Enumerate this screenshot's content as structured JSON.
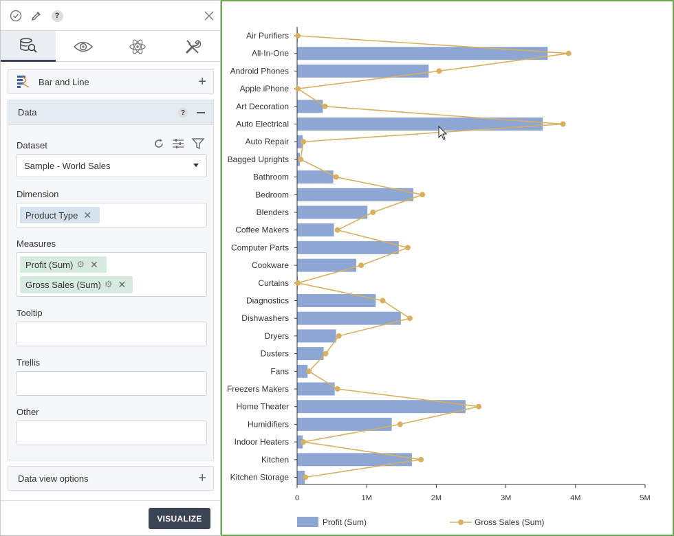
{
  "panel": {
    "tabs": [
      {
        "icon": "search-data-icon"
      },
      {
        "icon": "eye-icon"
      },
      {
        "icon": "atom-icon"
      },
      {
        "icon": "tools-icon"
      }
    ],
    "chart_type_label": "Bar and Line",
    "data_section_label": "Data",
    "help_mark": "?",
    "dataset_label": "Dataset",
    "dataset_value": "Sample - World Sales",
    "dimension_label": "Dimension",
    "dimension_chip": "Product Type",
    "measures_label": "Measures",
    "measure_chips": [
      "Profit (Sum)",
      "Gross Sales (Sum)"
    ],
    "tooltip_label": "Tooltip",
    "trellis_label": "Trellis",
    "other_label": "Other",
    "data_view_options_label": "Data view options",
    "visualize_label": "VISUALIZE"
  },
  "colors": {
    "bar": "#8ea6d3",
    "line": "#d9b05f",
    "frame": "#6aa84f",
    "button": "#3b4453"
  },
  "chart_data": {
    "type": "bar",
    "orientation": "horizontal",
    "categories": [
      "Air Purifiers",
      "All-In-One",
      "Android Phones",
      "Apple iPhone",
      "Art Decoration",
      "Auto Electrical",
      "Auto Repair",
      "Bagged Uprights",
      "Bathroom",
      "Bedroom",
      "Blenders",
      "Coffee Makers",
      "Computer Parts",
      "Cookware",
      "Curtains",
      "Diagnostics",
      "Dishwashers",
      "Dryers",
      "Dusters",
      "Fans",
      "Freezers Makers",
      "Home Theater",
      "Humidifiers",
      "Indoor Heaters",
      "Kitchen",
      "Kitchen Storage"
    ],
    "series": [
      {
        "name": "Profit (Sum)",
        "type": "bar",
        "values": [
          10000,
          3600000,
          1890000,
          5000,
          370000,
          3530000,
          80000,
          40000,
          520000,
          1670000,
          1010000,
          530000,
          1460000,
          850000,
          10000,
          1130000,
          1490000,
          560000,
          380000,
          150000,
          540000,
          2420000,
          1360000,
          80000,
          1650000,
          110000
        ]
      },
      {
        "name": "Gross Sales (Sum)",
        "type": "line",
        "values": [
          10000,
          3900000,
          2040000,
          10000,
          400000,
          3820000,
          90000,
          50000,
          560000,
          1800000,
          1090000,
          580000,
          1590000,
          920000,
          10000,
          1230000,
          1620000,
          600000,
          410000,
          170000,
          580000,
          2610000,
          1480000,
          90000,
          1780000,
          120000
        ]
      }
    ],
    "x_ticks": [
      "0",
      "1M",
      "2M",
      "3M",
      "4M",
      "5M"
    ],
    "xlim": [
      0,
      5000000
    ],
    "legend": [
      "Profit (Sum)",
      "Gross Sales (Sum)"
    ],
    "legend_position": "bottom"
  }
}
